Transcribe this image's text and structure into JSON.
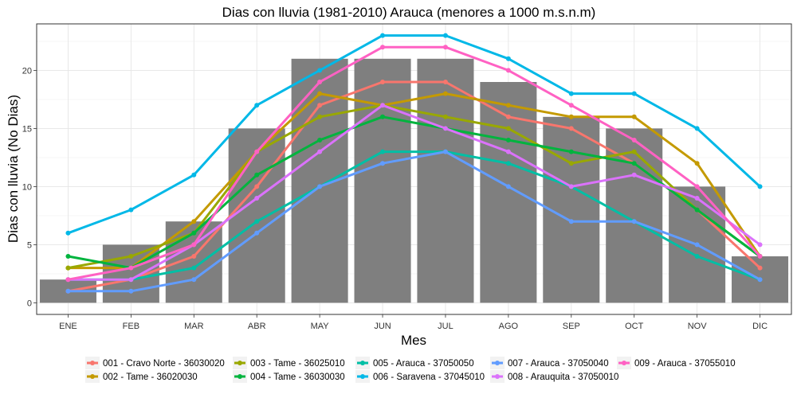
{
  "chart_data": {
    "type": "bar+line",
    "title": "Dias con lluvia (1981-2010) Arauca (menores a 1000 m.s.n.m)",
    "xlabel": "Mes",
    "ylabel": "Dias con lluvia (No Dias)",
    "categories": [
      "ENE",
      "FEB",
      "MAR",
      "ABR",
      "MAY",
      "JUN",
      "JUL",
      "AGO",
      "SEP",
      "OCT",
      "NOV",
      "DIC"
    ],
    "ylim": [
      -1,
      24
    ],
    "yticks": [
      0,
      5,
      10,
      15,
      20
    ],
    "grid": true,
    "legend_position": "bottom",
    "bar_color": "#7f7f7f",
    "bars": [
      2,
      5,
      7,
      15,
      21,
      21,
      21,
      19,
      16,
      15,
      10,
      4
    ],
    "series": [
      {
        "name": "001 - Cravo Norte - 36030020",
        "color": "#F8766D",
        "values": [
          1,
          2,
          4,
          10,
          17,
          19,
          19,
          16,
          15,
          12,
          8,
          3
        ]
      },
      {
        "name": "002 - Tame - 36020030",
        "color": "#C49A00",
        "values": [
          3,
          3,
          7,
          13,
          18,
          17,
          18,
          17,
          16,
          16,
          12,
          4
        ]
      },
      {
        "name": "003 - Tame - 36025010",
        "color": "#99A800",
        "values": [
          3,
          4,
          6,
          13,
          16,
          17,
          16,
          15,
          12,
          13,
          8,
          4
        ]
      },
      {
        "name": "004 - Tame - 36030030",
        "color": "#00B43E",
        "values": [
          4,
          3,
          6,
          11,
          14,
          16,
          15,
          14,
          13,
          12,
          8,
          4
        ]
      },
      {
        "name": "005 - Arauca - 37050050",
        "color": "#00BFA5",
        "values": [
          2,
          2,
          3,
          7,
          10,
          13,
          13,
          12,
          10,
          7,
          4,
          2
        ]
      },
      {
        "name": "006 - Saravena - 37045010",
        "color": "#00B8E7",
        "values": [
          6,
          8,
          11,
          17,
          20,
          23,
          23,
          21,
          18,
          18,
          15,
          10
        ]
      },
      {
        "name": "007 - Arauca - 37050040",
        "color": "#619CFF",
        "values": [
          1,
          1,
          2,
          6,
          10,
          12,
          13,
          10,
          7,
          7,
          5,
          2
        ]
      },
      {
        "name": "008 - Arauquita - 37050010",
        "color": "#DB72FB",
        "values": [
          2,
          2,
          5,
          9,
          13,
          17,
          15,
          13,
          10,
          11,
          9,
          5
        ]
      },
      {
        "name": "009 - Arauca - 37055010",
        "color": "#FF61C3",
        "values": [
          2,
          3,
          5,
          13,
          19,
          22,
          22,
          20,
          17,
          14,
          10,
          4
        ]
      }
    ]
  }
}
